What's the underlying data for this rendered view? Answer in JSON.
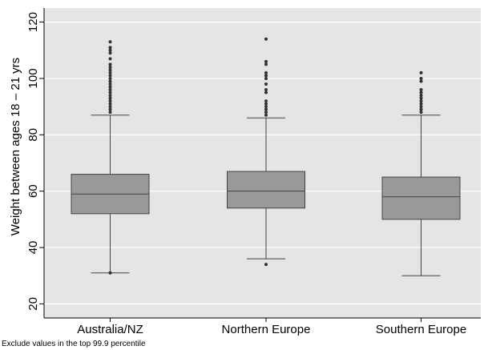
{
  "chart_data": {
    "type": "box",
    "ylabel": "Weight between ages 18 – 21 yrs",
    "ylim": [
      15,
      125
    ],
    "yticks": [
      20,
      40,
      60,
      80,
      100,
      120
    ],
    "grid": true,
    "categories": [
      "Australia/NZ",
      "Northern Europe",
      "Southern Europe"
    ],
    "boxes": [
      {
        "name": "Australia/NZ",
        "whisker_low": 31,
        "q1": 52,
        "median": 59,
        "q3": 66,
        "whisker_high": 87,
        "outliers": [
          31,
          88,
          89,
          90,
          91,
          92,
          93,
          94,
          95,
          96,
          97,
          98,
          99,
          100,
          101,
          102,
          103,
          104,
          105,
          107,
          109,
          110,
          111,
          113
        ]
      },
      {
        "name": "Northern Europe",
        "whisker_low": 36,
        "q1": 54,
        "median": 60,
        "q3": 67,
        "whisker_high": 86,
        "outliers": [
          34,
          87,
          88,
          89,
          90,
          91,
          92,
          95,
          96,
          98,
          100,
          101,
          102,
          105,
          106,
          114
        ]
      },
      {
        "name": "Southern Europe",
        "whisker_low": 30,
        "q1": 50,
        "median": 58,
        "q3": 65,
        "whisker_high": 87,
        "outliers": [
          88,
          89,
          90,
          91,
          92,
          93,
          94,
          95,
          96,
          99,
          100,
          102
        ]
      }
    ],
    "colors": {
      "box_fill": "#999999",
      "box_stroke": "#444444",
      "plot_bg": "#e5e5e5",
      "grid": "#ffffff"
    }
  },
  "note": "Exclude values in the top 99.9 percentile"
}
